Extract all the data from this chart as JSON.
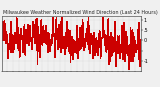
{
  "title": "Milwaukee Weather Normalized Wind Direction (Last 24 Hours)",
  "title_fontsize": 3.5,
  "line_color": "#cc0000",
  "line_width": 0.5,
  "background_color": "#f0f0f0",
  "plot_bg_color": "#f0f0f0",
  "grid_color": "#bbbbbb",
  "ylim": [
    -1.5,
    1.2
  ],
  "yticks": [
    1.0,
    0.5,
    0.0,
    -0.5,
    -1.0
  ],
  "ytick_labels": [
    "1",
    ".5",
    "0",
    "",
    "-1"
  ],
  "ylabel_fontsize": 3.5,
  "xlabel_fontsize": 2.8,
  "n_points": 288,
  "seed": 42,
  "noise_scale": 0.52,
  "x_tick_count": 25,
  "figsize": [
    1.6,
    0.87
  ],
  "dpi": 100
}
